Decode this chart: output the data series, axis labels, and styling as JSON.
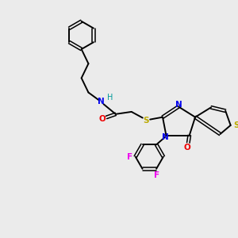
{
  "bg_color": "#ebebeb",
  "atom_colors": {
    "C": "#000000",
    "N": "#0000ee",
    "O": "#ee0000",
    "S_thio": "#bbaa00",
    "S_ring": "#bbaa00",
    "F": "#ee00ee",
    "H": "#009999"
  },
  "bond_color": "#000000",
  "figsize": [
    3.0,
    3.0
  ],
  "dpi": 100
}
